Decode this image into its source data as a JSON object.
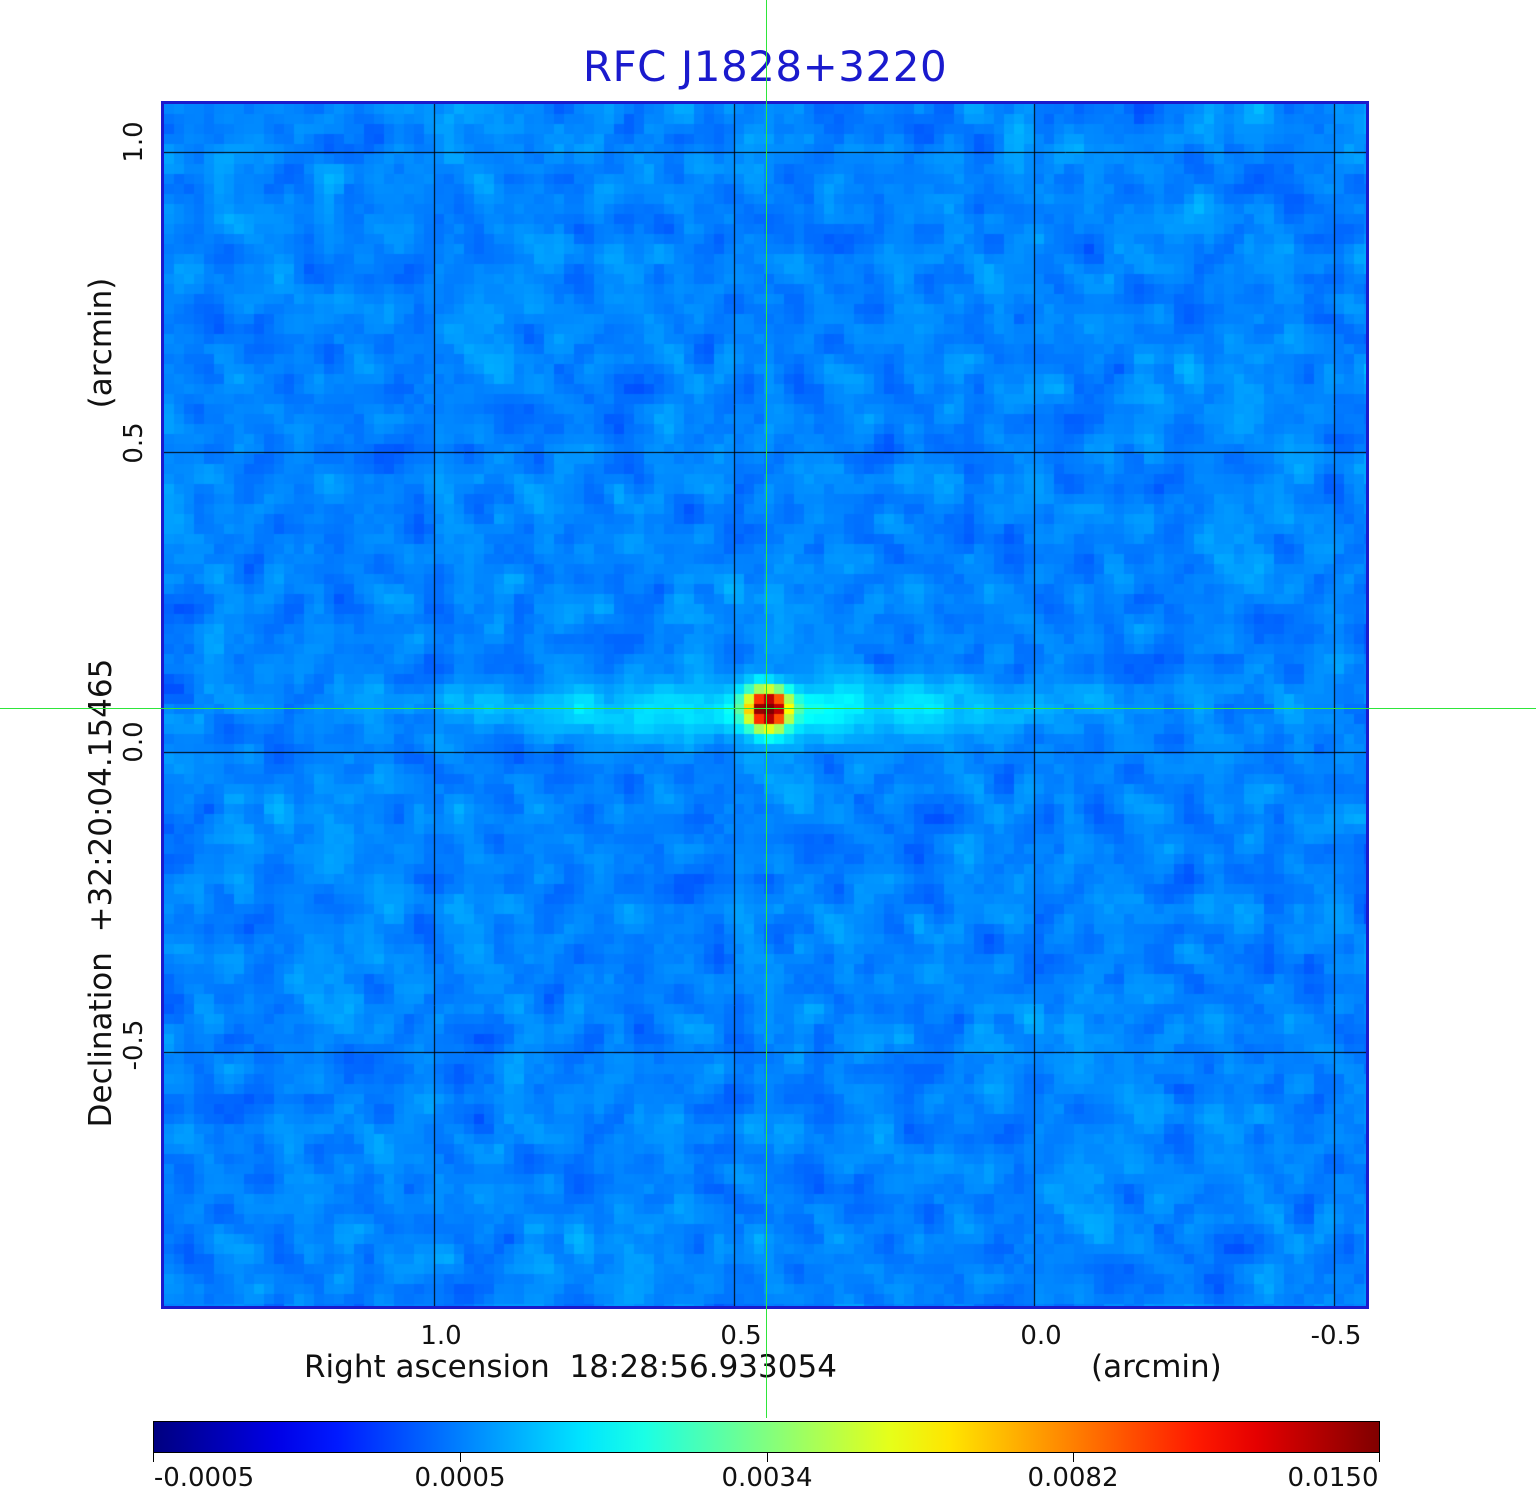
{
  "title": "RFC J1828+3220",
  "x_axis": {
    "label": "Right ascension",
    "reference": "18:28:56.933054",
    "unit": "(arcmin)",
    "ticks": [
      "1.0",
      "0.5",
      "0.0",
      "-0.5"
    ]
  },
  "y_axis": {
    "label": "Declination",
    "reference": "+32:20:04.15465",
    "unit": "(arcmin)",
    "ticks": [
      "1.0",
      "0.5",
      "0.0",
      "-0.5"
    ]
  },
  "colorbar": {
    "colormap": "jet",
    "ticks": [
      "-0.0005",
      "0.0005",
      "0.0034",
      "0.0082",
      "0.0150"
    ]
  },
  "colors": {
    "title": "#1a1acd",
    "frame": "#1a1acd",
    "crosshair": "#2ee63a",
    "grid": "#000000"
  }
}
